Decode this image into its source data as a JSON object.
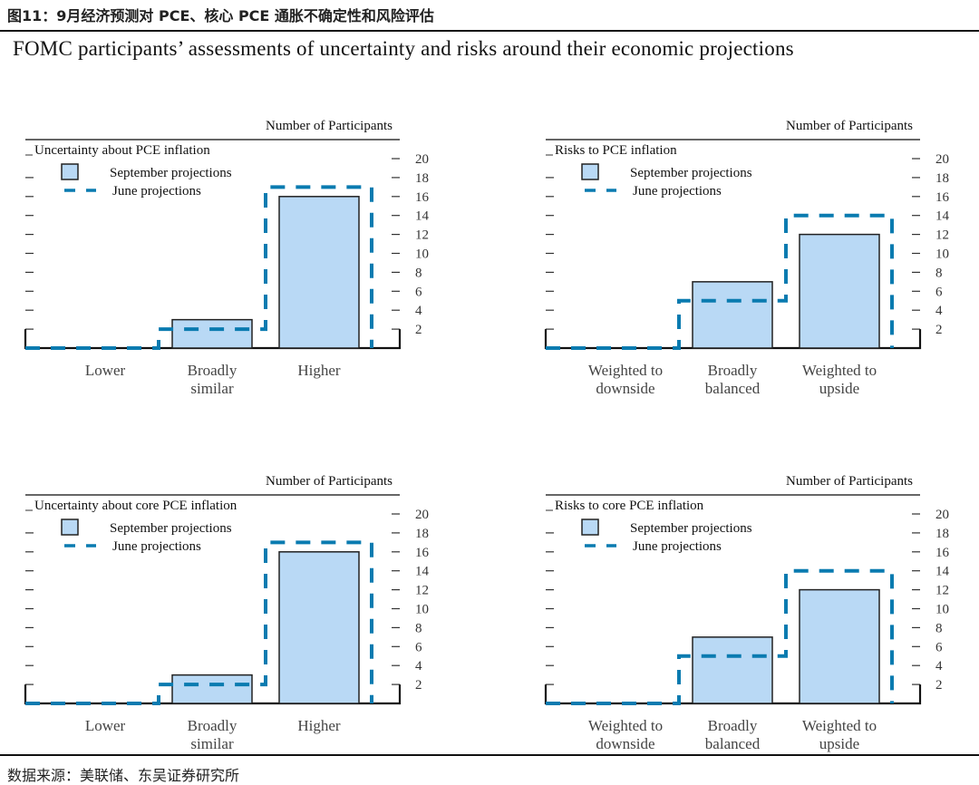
{
  "header": {
    "cn_title": "图11：9月经济预测对 PCE、核心 PCE 通胀不确定性和风险评估",
    "en_title": "FOMC participants’ assessments of uncertainty and risks around their economic projections"
  },
  "footer": {
    "source": "数据来源：美联储、东吴证券研究所"
  },
  "colors": {
    "september_fill": "#b9d9f5",
    "june_line": "#0a7bb0",
    "axis": "#111111"
  },
  "chart_data": [
    {
      "type": "bar",
      "title": "Uncertainty about PCE inflation",
      "ylabel": "Number of Participants",
      "categories": [
        [
          "Lower"
        ],
        [
          "Broadly",
          "similar"
        ],
        [
          "Higher"
        ]
      ],
      "series": [
        {
          "name": "September projections",
          "style": "bar",
          "values": [
            0,
            3,
            16
          ]
        },
        {
          "name": "June projections",
          "style": "dashed-step",
          "values": [
            0,
            2,
            17
          ]
        }
      ],
      "ylim": [
        0,
        20
      ],
      "yticks": [
        2,
        4,
        6,
        8,
        10,
        12,
        14,
        16,
        18,
        20
      ],
      "legend": "top-left",
      "grid": false
    },
    {
      "type": "bar",
      "title": "Risks to PCE inflation",
      "ylabel": "Number of Participants",
      "categories": [
        [
          "Weighted to",
          "downside"
        ],
        [
          "Broadly",
          "balanced"
        ],
        [
          "Weighted to",
          "upside"
        ]
      ],
      "series": [
        {
          "name": "September projections",
          "style": "bar",
          "values": [
            0,
            7,
            12
          ]
        },
        {
          "name": "June projections",
          "style": "dashed-step",
          "values": [
            0,
            5,
            14
          ]
        }
      ],
      "ylim": [
        0,
        20
      ],
      "yticks": [
        2,
        4,
        6,
        8,
        10,
        12,
        14,
        16,
        18,
        20
      ],
      "legend": "top-left",
      "grid": false
    },
    {
      "type": "bar",
      "title": "Uncertainty about core PCE inflation",
      "ylabel": "Number of Participants",
      "categories": [
        [
          "Lower"
        ],
        [
          "Broadly",
          "similar"
        ],
        [
          "Higher"
        ]
      ],
      "series": [
        {
          "name": "September projections",
          "style": "bar",
          "values": [
            0,
            3,
            16
          ]
        },
        {
          "name": "June projections",
          "style": "dashed-step",
          "values": [
            0,
            2,
            17
          ]
        }
      ],
      "ylim": [
        0,
        20
      ],
      "yticks": [
        2,
        4,
        6,
        8,
        10,
        12,
        14,
        16,
        18,
        20
      ],
      "legend": "top-left",
      "grid": false
    },
    {
      "type": "bar",
      "title": "Risks to core PCE inflation",
      "ylabel": "Number of Participants",
      "categories": [
        [
          "Weighted to",
          "downside"
        ],
        [
          "Broadly",
          "balanced"
        ],
        [
          "Weighted to",
          "upside"
        ]
      ],
      "series": [
        {
          "name": "September projections",
          "style": "bar",
          "values": [
            0,
            7,
            12
          ]
        },
        {
          "name": "June projections",
          "style": "dashed-step",
          "values": [
            0,
            5,
            14
          ]
        }
      ],
      "ylim": [
        0,
        20
      ],
      "yticks": [
        2,
        4,
        6,
        8,
        10,
        12,
        14,
        16,
        18,
        20
      ],
      "legend": "top-left",
      "grid": false
    }
  ]
}
